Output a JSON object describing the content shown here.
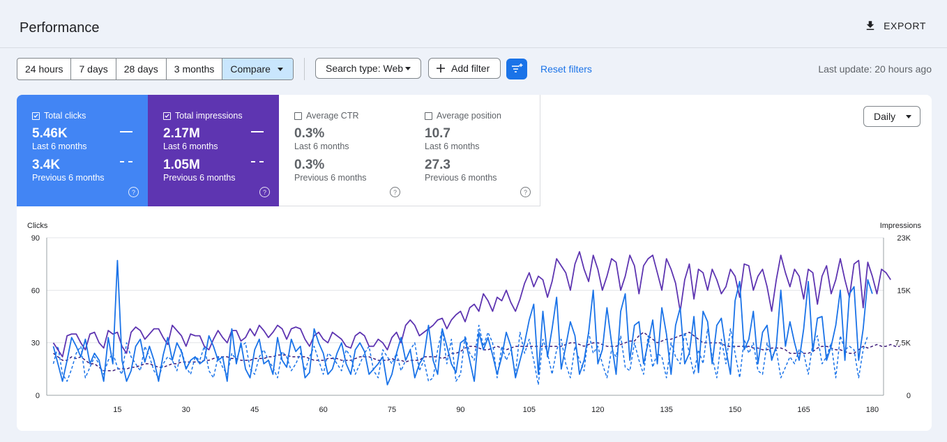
{
  "header": {
    "title": "Performance",
    "export_label": "EXPORT"
  },
  "toolbar": {
    "ranges": [
      "24 hours",
      "7 days",
      "28 days",
      "3 months",
      "Compare"
    ],
    "search_type": "Search type: Web",
    "add_filter": "Add filter",
    "reset_filters": "Reset filters",
    "last_update": "Last update: 20 hours ago"
  },
  "metrics": [
    {
      "label": "Total clicks",
      "checked": true,
      "current": "5.46K",
      "current_period": "Last 6 months",
      "previous": "3.4K",
      "previous_period": "Previous 6 months",
      "color": "#4285f4"
    },
    {
      "label": "Total impressions",
      "checked": true,
      "current": "2.17M",
      "current_period": "Last 6 months",
      "previous": "1.05M",
      "previous_period": "Previous 6 months",
      "color": "#5e35b1"
    },
    {
      "label": "Average CTR",
      "checked": false,
      "current": "0.3%",
      "current_period": "Last 6 months",
      "previous": "0.3%",
      "previous_period": "Previous 6 months"
    },
    {
      "label": "Average position",
      "checked": false,
      "current": "10.7",
      "current_period": "Last 6 months",
      "previous": "27.3",
      "previous_period": "Previous 6 months"
    }
  ],
  "granularity": "Daily",
  "chart_data": {
    "type": "line",
    "ylabel_left": "Clicks",
    "ylabel_right": "Impressions",
    "ylim_left": [
      0,
      90
    ],
    "ylim_right": [
      0,
      23000
    ],
    "yticks_left": [
      "0",
      "30",
      "60",
      "90"
    ],
    "yticks_right": [
      "0",
      "7.5K",
      "15K",
      "23K"
    ],
    "xticks": [
      15,
      30,
      45,
      60,
      75,
      90,
      105,
      120,
      135,
      150,
      165,
      180
    ],
    "grid": true,
    "series": [
      {
        "name": "Total clicks",
        "line": "solid",
        "axis": "left",
        "color": "#1a73e8",
        "values": [
          28,
          18,
          8,
          20,
          33,
          28,
          22,
          32,
          18,
          24,
          20,
          8,
          33,
          18,
          77,
          20,
          8,
          14,
          28,
          32,
          19,
          28,
          20,
          8,
          23,
          33,
          20,
          30,
          25,
          15,
          20,
          22,
          18,
          20,
          34,
          28,
          20,
          22,
          8,
          38,
          18,
          30,
          15,
          10,
          26,
          32,
          18,
          20,
          12,
          33,
          20,
          16,
          32,
          25,
          28,
          10,
          13,
          38,
          30,
          24,
          12,
          15,
          24,
          30,
          18,
          12,
          26,
          30,
          25,
          12,
          15,
          18,
          22,
          6,
          12,
          24,
          33,
          20,
          26,
          10,
          18,
          22,
          40,
          20,
          12,
          38,
          28,
          18,
          13,
          30,
          32,
          20,
          8,
          36,
          26,
          33,
          23,
          12,
          22,
          36,
          28,
          10,
          20,
          30,
          43,
          52,
          12,
          48,
          22,
          38,
          56,
          15,
          28,
          42,
          34,
          12,
          20,
          36,
          60,
          18,
          26,
          50,
          30,
          12,
          48,
          58,
          20,
          40,
          42,
          18,
          30,
          43,
          18,
          50,
          35,
          12,
          40,
          50,
          18,
          24,
          45,
          13,
          48,
          42,
          18,
          40,
          44,
          26,
          12,
          54,
          65,
          26,
          32,
          48,
          18,
          36,
          40,
          20,
          28,
          60,
          28,
          42,
          30,
          20,
          38,
          65,
          25,
          44,
          45,
          20,
          28,
          40,
          60,
          20,
          58,
          62,
          20,
          38,
          66,
          58
        ]
      },
      {
        "name": "Total impressions",
        "line": "solid",
        "axis": "left",
        "color": "#5e35b1",
        "values": [
          30,
          26,
          22,
          34,
          35,
          35,
          30,
          26,
          35,
          36,
          30,
          27,
          37,
          35,
          36,
          28,
          24,
          36,
          39,
          37,
          32,
          35,
          38,
          38,
          33,
          29,
          40,
          37,
          34,
          28,
          35,
          34,
          34,
          28,
          26,
          32,
          37,
          33,
          30,
          37,
          37,
          31,
          33,
          38,
          34,
          40,
          37,
          33,
          36,
          40,
          38,
          32,
          38,
          39,
          38,
          32,
          28,
          34,
          36,
          32,
          30,
          36,
          34,
          32,
          28,
          27,
          34,
          36,
          34,
          28,
          28,
          32,
          30,
          26,
          33,
          36,
          30,
          40,
          43,
          40,
          34,
          36,
          38,
          40,
          43,
          44,
          38,
          43,
          46,
          48,
          42,
          50,
          52,
          48,
          58,
          54,
          48,
          56,
          54,
          60,
          53,
          48,
          55,
          64,
          70,
          62,
          68,
          66,
          56,
          65,
          78,
          74,
          70,
          60,
          75,
          82,
          72,
          65,
          80,
          72,
          60,
          68,
          78,
          76,
          60,
          68,
          80,
          74,
          58,
          74,
          78,
          80,
          70,
          60,
          78,
          72,
          64,
          48,
          66,
          75,
          55,
          72,
          70,
          60,
          72,
          66,
          58,
          62,
          72,
          68,
          56,
          75,
          74,
          60,
          68,
          72,
          62,
          48,
          66,
          80,
          70,
          62,
          72,
          68,
          55,
          72,
          70,
          52,
          68,
          74,
          58,
          66,
          78,
          66,
          56,
          75,
          77,
          50,
          76,
          68,
          58,
          72,
          70,
          66
        ]
      },
      {
        "name": "Total clicks",
        "line": "dashed",
        "axis": "left",
        "color": "#1a73e8",
        "period": "Previous 6 months",
        "values": [
          18,
          28,
          12,
          8,
          15,
          24,
          28,
          10,
          16,
          22,
          18,
          12,
          20,
          24,
          16,
          12,
          30,
          22,
          18,
          14,
          28,
          22,
          14,
          10,
          18,
          22,
          20,
          14,
          26,
          16,
          12,
          22,
          20,
          28,
          14,
          10,
          22,
          16,
          12,
          24,
          20,
          28,
          30,
          15,
          12,
          22,
          26,
          20,
          16,
          10,
          25,
          22,
          14,
          18,
          24,
          14,
          22,
          28,
          20,
          12,
          24,
          22,
          18,
          14,
          26,
          22,
          12,
          18,
          24,
          28,
          14,
          10,
          26,
          22,
          18,
          24,
          14,
          20,
          26,
          30,
          14,
          20,
          8,
          10,
          26,
          38,
          18,
          32,
          8,
          12,
          34,
          24,
          20,
          40,
          28,
          36,
          30,
          10,
          28,
          20,
          26,
          12,
          36,
          24,
          32,
          20,
          6,
          32,
          24,
          12,
          26,
          32,
          18,
          10,
          28,
          20,
          14,
          36,
          24,
          28,
          18,
          10,
          26,
          22,
          34,
          16,
          14,
          30,
          20,
          12,
          34,
          16,
          24,
          22,
          10,
          30,
          22,
          18,
          36,
          24,
          12,
          26,
          18,
          38,
          22,
          10,
          32,
          18,
          38,
          24,
          10,
          32,
          24,
          30,
          14,
          12,
          30,
          22,
          26,
          10,
          16,
          22,
          18,
          26,
          24,
          12,
          30,
          34,
          18,
          22,
          30,
          10,
          34,
          26,
          28,
          26,
          10,
          26,
          34
        ]
      },
      {
        "name": "Total impressions",
        "line": "dashed",
        "axis": "left",
        "color": "#3c1a78",
        "period": "Previous 6 months",
        "values": [
          24,
          22,
          20,
          20,
          22,
          21,
          22,
          20,
          18,
          18,
          16,
          14,
          14,
          14,
          15,
          15,
          15,
          16,
          16,
          17,
          18,
          18,
          17,
          16,
          16,
          17,
          18,
          18,
          19,
          19,
          19,
          19,
          19,
          20,
          20,
          21,
          22,
          22,
          22,
          21,
          21,
          20,
          20,
          20,
          21,
          21,
          21,
          22,
          22,
          23,
          23,
          23,
          22,
          22,
          22,
          22,
          21,
          20,
          20,
          20,
          21,
          21,
          21,
          20,
          20,
          20,
          21,
          22,
          22,
          22,
          21,
          20,
          20,
          20,
          21,
          20,
          20,
          19,
          20,
          20,
          20,
          22,
          22,
          22,
          22,
          21,
          22,
          24,
          24,
          25,
          27,
          28,
          28,
          27,
          26,
          26,
          27,
          28,
          27,
          26,
          27,
          28,
          28,
          28,
          28,
          28,
          28,
          28,
          28,
          28,
          28,
          28,
          29,
          30,
          30,
          29,
          28,
          29,
          30,
          30,
          29,
          28,
          28,
          28,
          29,
          30,
          31,
          31,
          34,
          36,
          34,
          32,
          30,
          31,
          32,
          32,
          33,
          34,
          35,
          36,
          34,
          32,
          30,
          30,
          30,
          30,
          30,
          28,
          28,
          28,
          28,
          28,
          28,
          27,
          27,
          26,
          26,
          27,
          27,
          27,
          26,
          24,
          24,
          24,
          24,
          24,
          25,
          27,
          28,
          28,
          27,
          26,
          26,
          25,
          24,
          24,
          26,
          28,
          27,
          28,
          29,
          28,
          28,
          29,
          28,
          28
        ]
      }
    ]
  }
}
